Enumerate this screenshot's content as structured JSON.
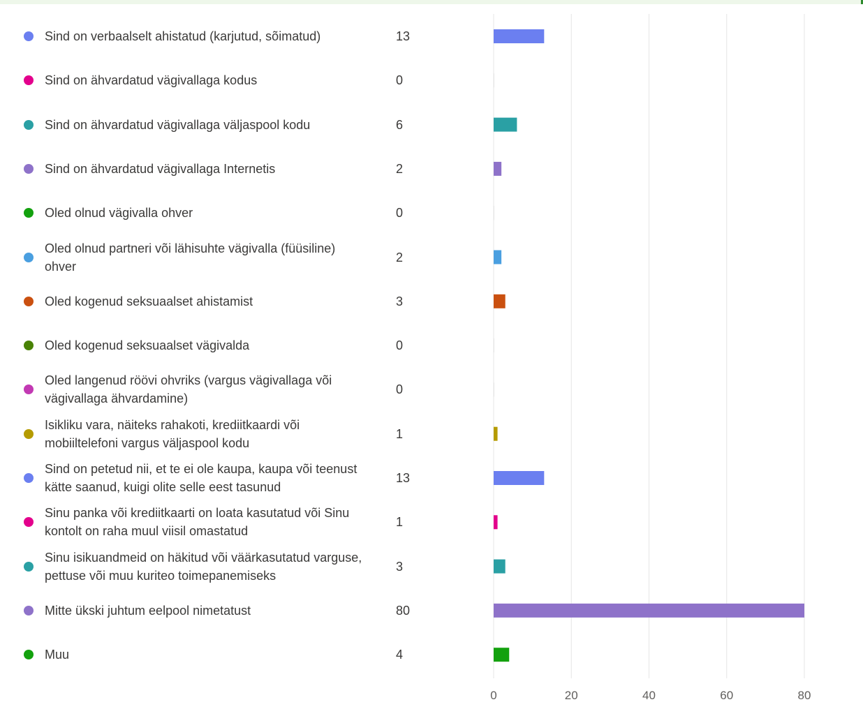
{
  "chart_data": {
    "type": "bar",
    "orientation": "horizontal",
    "categories": [
      "Sind on verbaalselt ahistatud (karjutud, sõimatud)",
      "Sind on ähvardatud vägivallaga kodus",
      "Sind on ähvardatud vägivallaga väljaspool kodu",
      "Sind on ähvardatud vägivallaga Internetis",
      "Oled olnud vägivalla ohver",
      "Oled olnud partneri või lähisuhte vägivalla (füüsiline) ohver",
      "Oled kogenud seksuaalset ahistamist",
      "Oled kogenud seksuaalset vägivalda",
      "Oled langenud röövi ohvriks (vargus vägivallaga või vägivallaga ähvardamine)",
      "Isikliku vara, näiteks rahakoti, krediitkaardi või mobiiltelefoni vargus väljaspool kodu",
      "Sind on petetud nii, et te ei ole kaupa, kaupa või teenust kätte saanud, kuigi olite selle eest tasunud",
      "Sinu panka või krediitkaarti on loata kasutatud või Sinu kontolt on raha muul viisil omastatud",
      "Sinu isikuandmeid on häkitud või väärkasutatud varguse, pettuse või muu kuriteo toimepanemiseks",
      "Mitte ükski juhtum eelpool nimetatust",
      "Muu"
    ],
    "values": [
      13,
      0,
      6,
      2,
      0,
      2,
      3,
      0,
      0,
      1,
      13,
      1,
      3,
      80,
      4
    ],
    "counts_text": [
      "13",
      "0",
      "6",
      "2",
      "0",
      "2",
      "3",
      "0",
      "0",
      "1",
      "13",
      "1",
      "3",
      "80",
      "4"
    ],
    "colors": [
      "#6b7ff0",
      "#e3008c",
      "#2aa0a4",
      "#8e72c9",
      "#13a10e",
      "#4a9fe0",
      "#ca5010",
      "#498205",
      "#c239b3",
      "#b59b00",
      "#6b7ff0",
      "#e3008c",
      "#2aa0a4",
      "#8e72c9",
      "#13a10e"
    ],
    "x_ticks": [
      "0",
      "20",
      "40",
      "60",
      "80"
    ],
    "xlim": [
      0,
      80
    ],
    "grid": true,
    "title": "",
    "xlabel": "",
    "ylabel": ""
  }
}
